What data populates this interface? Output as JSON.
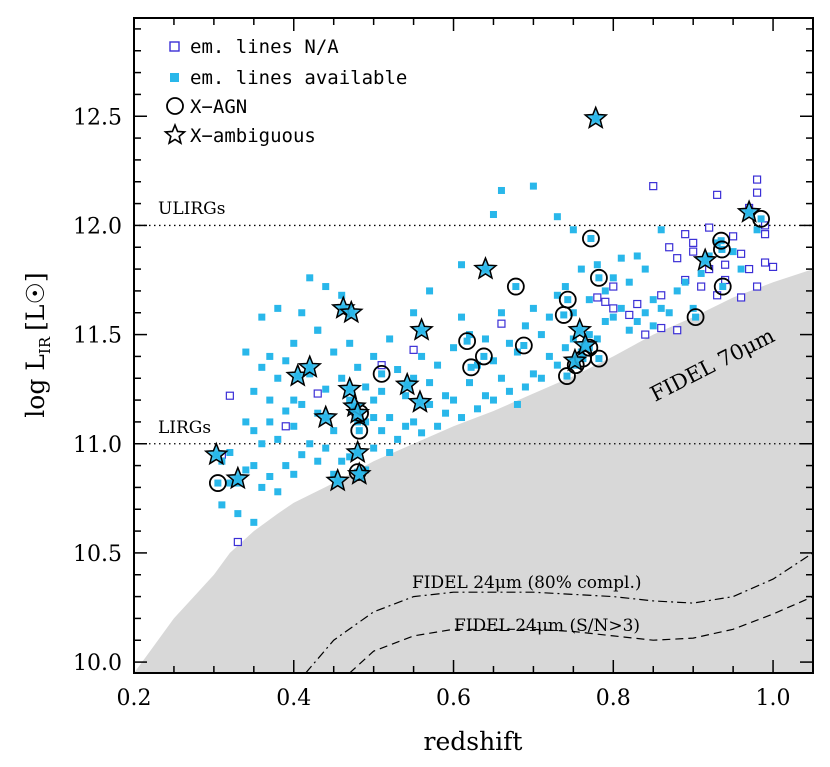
{
  "chart_data": {
    "type": "scatter",
    "xlabel": "redshift",
    "ylabel_main": "log L",
    "ylabel_sub": "IR",
    "ylabel_unit": "[L☉]",
    "xlim": [
      0.2,
      1.05
    ],
    "ylim": [
      9.95,
      12.95
    ],
    "x_ticks": [
      0.2,
      0.4,
      0.6,
      0.8,
      1.0
    ],
    "x_tick_labels": [
      "0.2",
      "0.4",
      "0.6",
      "0.8",
      "1.0"
    ],
    "y_ticks": [
      10.0,
      10.5,
      11.0,
      11.5,
      12.0,
      12.5
    ],
    "y_tick_labels": [
      "10.0",
      "10.5",
      "11.0",
      "11.5",
      "12.0",
      "12.5"
    ],
    "legend": {
      "position": "top-left",
      "entries": [
        {
          "label": "em. lines N/A",
          "marker": "open-square",
          "color": "#3b2fd6"
        },
        {
          "label": "em. lines available",
          "marker": "filled-square",
          "color": "#29b7ea"
        },
        {
          "label": "X−AGN",
          "marker": "circle",
          "color": "#000000"
        },
        {
          "label": "X−ambiguous",
          "marker": "star",
          "color": "#000000"
        }
      ]
    },
    "reference_lines": [
      {
        "label": "ULIRGs",
        "y": 12.0,
        "style": "dotted"
      },
      {
        "label": "LIRGs",
        "y": 11.0,
        "style": "dotted"
      }
    ],
    "curves": [
      {
        "label": "FIDEL 70μm",
        "style": "shaded",
        "x": [
          0.2,
          0.22,
          0.25,
          0.28,
          0.3,
          0.32,
          0.35,
          0.38,
          0.4,
          0.45,
          0.5,
          0.55,
          0.6,
          0.65,
          0.7,
          0.75,
          0.8,
          0.85,
          0.9,
          0.95,
          1.0,
          1.05
        ],
        "y": [
          9.95,
          10.05,
          10.2,
          10.32,
          10.4,
          10.5,
          10.6,
          10.68,
          10.73,
          10.82,
          10.92,
          11.0,
          11.08,
          11.15,
          11.23,
          11.31,
          11.4,
          11.5,
          11.58,
          11.67,
          11.74,
          11.8
        ]
      },
      {
        "label": "FIDEL 24μm (80% compl.)",
        "style": "dash-dot",
        "x": [
          0.415,
          0.45,
          0.5,
          0.55,
          0.6,
          0.65,
          0.7,
          0.75,
          0.8,
          0.85,
          0.9,
          0.95,
          1.0,
          1.05
        ],
        "y": [
          9.95,
          10.1,
          10.23,
          10.3,
          10.32,
          10.32,
          10.32,
          10.31,
          10.3,
          10.28,
          10.27,
          10.3,
          10.38,
          10.5
        ]
      },
      {
        "label": "FIDEL 24μm (S/N>3)",
        "style": "dashed",
        "x": [
          0.47,
          0.5,
          0.55,
          0.6,
          0.65,
          0.7,
          0.75,
          0.8,
          0.85,
          0.9,
          0.95,
          1.0,
          1.05
        ],
        "y": [
          9.95,
          10.05,
          10.12,
          10.15,
          10.15,
          10.15,
          10.14,
          10.12,
          10.1,
          10.11,
          10.15,
          10.22,
          10.3
        ]
      }
    ],
    "series": [
      {
        "name": "em. lines N/A",
        "marker": "open-square",
        "color": "#3b2fd6",
        "x": [
          0.31,
          0.32,
          0.33,
          0.39,
          0.43,
          0.51,
          0.55,
          0.66,
          0.78,
          0.79,
          0.8,
          0.8,
          0.82,
          0.83,
          0.84,
          0.85,
          0.86,
          0.86,
          0.87,
          0.88,
          0.88,
          0.89,
          0.89,
          0.9,
          0.9,
          0.91,
          0.92,
          0.92,
          0.93,
          0.93,
          0.94,
          0.94,
          0.95,
          0.96,
          0.96,
          0.97,
          0.97,
          0.98,
          0.98,
          0.98,
          0.99,
          0.99,
          0.99,
          1.0
        ],
        "y": [
          10.95,
          11.22,
          10.55,
          11.08,
          11.23,
          11.36,
          11.43,
          11.55,
          11.67,
          11.65,
          11.72,
          11.62,
          11.59,
          11.64,
          11.5,
          12.18,
          11.68,
          11.53,
          11.9,
          11.85,
          11.52,
          11.96,
          11.75,
          11.92,
          11.88,
          11.72,
          11.99,
          11.8,
          12.14,
          11.68,
          11.75,
          11.82,
          11.95,
          11.87,
          11.67,
          12.08,
          11.8,
          12.15,
          12.21,
          11.72,
          11.96,
          11.83,
          12.0,
          11.81
        ]
      },
      {
        "name": "em. lines available",
        "marker": "filled-square",
        "color": "#29b7ea",
        "x": [
          0.31,
          0.31,
          0.32,
          0.32,
          0.33,
          0.33,
          0.34,
          0.34,
          0.34,
          0.35,
          0.35,
          0.35,
          0.35,
          0.36,
          0.36,
          0.36,
          0.37,
          0.37,
          0.37,
          0.37,
          0.38,
          0.38,
          0.38,
          0.39,
          0.39,
          0.39,
          0.4,
          0.4,
          0.4,
          0.41,
          0.41,
          0.41,
          0.42,
          0.42,
          0.42,
          0.43,
          0.43,
          0.43,
          0.44,
          0.44,
          0.44,
          0.45,
          0.45,
          0.45,
          0.46,
          0.46,
          0.46,
          0.47,
          0.47,
          0.47,
          0.48,
          0.48,
          0.49,
          0.49,
          0.49,
          0.5,
          0.5,
          0.5,
          0.51,
          0.51,
          0.52,
          0.52,
          0.52,
          0.53,
          0.53,
          0.54,
          0.54,
          0.55,
          0.55,
          0.55,
          0.56,
          0.56,
          0.57,
          0.57,
          0.58,
          0.58,
          0.59,
          0.59,
          0.6,
          0.6,
          0.61,
          0.61,
          0.62,
          0.62,
          0.63,
          0.63,
          0.64,
          0.64,
          0.65,
          0.65,
          0.66,
          0.66,
          0.67,
          0.67,
          0.68,
          0.68,
          0.69,
          0.69,
          0.7,
          0.7,
          0.71,
          0.71,
          0.72,
          0.72,
          0.73,
          0.73,
          0.74,
          0.74,
          0.75,
          0.75,
          0.76,
          0.76,
          0.77,
          0.77,
          0.78,
          0.78,
          0.79,
          0.79,
          0.8,
          0.8,
          0.81,
          0.81,
          0.82,
          0.82,
          0.83,
          0.83,
          0.84,
          0.84,
          0.85,
          0.85,
          0.86,
          0.86,
          0.87,
          0.88,
          0.89,
          0.9,
          0.91,
          0.92,
          0.93,
          0.95,
          0.96,
          0.98,
          0.65,
          0.66,
          0.7,
          0.73,
          0.75,
          0.61,
          0.57,
          0.43,
          0.4,
          0.38,
          0.36,
          0.5
        ],
        "y": [
          10.72,
          10.92,
          10.82,
          10.96,
          10.68,
          10.82,
          10.88,
          11.1,
          11.42,
          10.64,
          10.9,
          11.06,
          11.24,
          10.8,
          11.0,
          11.35,
          10.85,
          11.1,
          11.2,
          11.4,
          10.78,
          11.02,
          11.3,
          10.9,
          11.15,
          11.38,
          10.86,
          11.08,
          11.2,
          10.95,
          11.18,
          11.6,
          11.0,
          11.32,
          11.76,
          10.92,
          11.14,
          11.52,
          10.98,
          11.25,
          11.72,
          10.86,
          11.06,
          11.42,
          10.92,
          11.3,
          11.68,
          10.94,
          11.2,
          11.46,
          11.1,
          11.35,
          10.88,
          11.1,
          11.26,
          10.98,
          11.2,
          11.4,
          11.06,
          11.24,
          10.96,
          11.12,
          11.48,
          11.02,
          11.34,
          11.08,
          11.22,
          11.1,
          11.3,
          11.6,
          11.05,
          11.4,
          11.18,
          11.28,
          11.08,
          11.36,
          11.14,
          11.22,
          11.2,
          11.44,
          11.12,
          11.58,
          11.28,
          11.5,
          11.16,
          11.36,
          11.22,
          11.48,
          11.2,
          11.38,
          11.3,
          11.6,
          11.24,
          11.46,
          11.18,
          11.42,
          11.26,
          11.54,
          11.32,
          11.62,
          11.3,
          11.5,
          11.4,
          11.58,
          11.36,
          11.68,
          11.44,
          11.72,
          11.48,
          11.6,
          11.42,
          11.8,
          11.5,
          11.66,
          11.48,
          11.82,
          11.56,
          11.7,
          11.58,
          11.76,
          11.62,
          11.85,
          11.52,
          11.74,
          11.56,
          11.86,
          11.6,
          11.8,
          11.66,
          11.54,
          11.62,
          11.98,
          11.6,
          11.7,
          11.74,
          11.62,
          11.78,
          11.86,
          11.92,
          11.88,
          11.8,
          11.98,
          12.05,
          12.16,
          12.18,
          12.04,
          11.98,
          11.82,
          11.7,
          11.52,
          11.46,
          11.62,
          11.58,
          11.12
        ]
      },
      {
        "name": "X−AGN",
        "marker": "circle",
        "color": "#000000",
        "x": [
          0.305,
          0.48,
          0.482,
          0.483,
          0.51,
          0.617,
          0.622,
          0.638,
          0.678,
          0.688,
          0.738,
          0.742,
          0.743,
          0.753,
          0.762,
          0.77,
          0.772,
          0.782,
          0.782,
          0.903,
          0.935,
          0.936,
          0.937,
          0.985
        ],
        "y": [
          10.82,
          10.87,
          11.06,
          11.14,
          11.32,
          11.47,
          11.35,
          11.4,
          11.72,
          11.45,
          11.59,
          11.31,
          11.66,
          11.36,
          11.39,
          11.44,
          11.94,
          11.76,
          11.39,
          11.58,
          11.93,
          11.89,
          11.72,
          12.03
        ]
      },
      {
        "name": "X−ambiguous",
        "marker": "star",
        "color": "#000000",
        "x": [
          0.303,
          0.33,
          0.405,
          0.42,
          0.44,
          0.455,
          0.462,
          0.47,
          0.472,
          0.476,
          0.48,
          0.48,
          0.482,
          0.542,
          0.558,
          0.56,
          0.64,
          0.752,
          0.758,
          0.765,
          0.778,
          0.915,
          0.97
        ],
        "y": [
          10.95,
          10.84,
          11.31,
          11.35,
          11.12,
          10.83,
          11.62,
          11.25,
          11.6,
          11.17,
          11.14,
          10.96,
          10.86,
          11.27,
          11.19,
          11.52,
          11.8,
          11.38,
          11.52,
          11.45,
          12.49,
          11.84,
          12.06
        ]
      }
    ],
    "annotations": [
      {
        "text": "FIDEL 70μm",
        "x": 0.95,
        "y": 11.28,
        "angle": -27
      },
      {
        "text": "FIDEL 24μm (80% compl.)",
        "x": 0.745,
        "y": 10.3
      },
      {
        "text": "FIDEL 24μm (S/N>3)",
        "x": 0.76,
        "y": 10.11
      }
    ],
    "colors": {
      "shade": "#d8d8d8",
      "filled": "#29b7ea",
      "open": "#3b2fd6",
      "frame": "#000000"
    }
  }
}
